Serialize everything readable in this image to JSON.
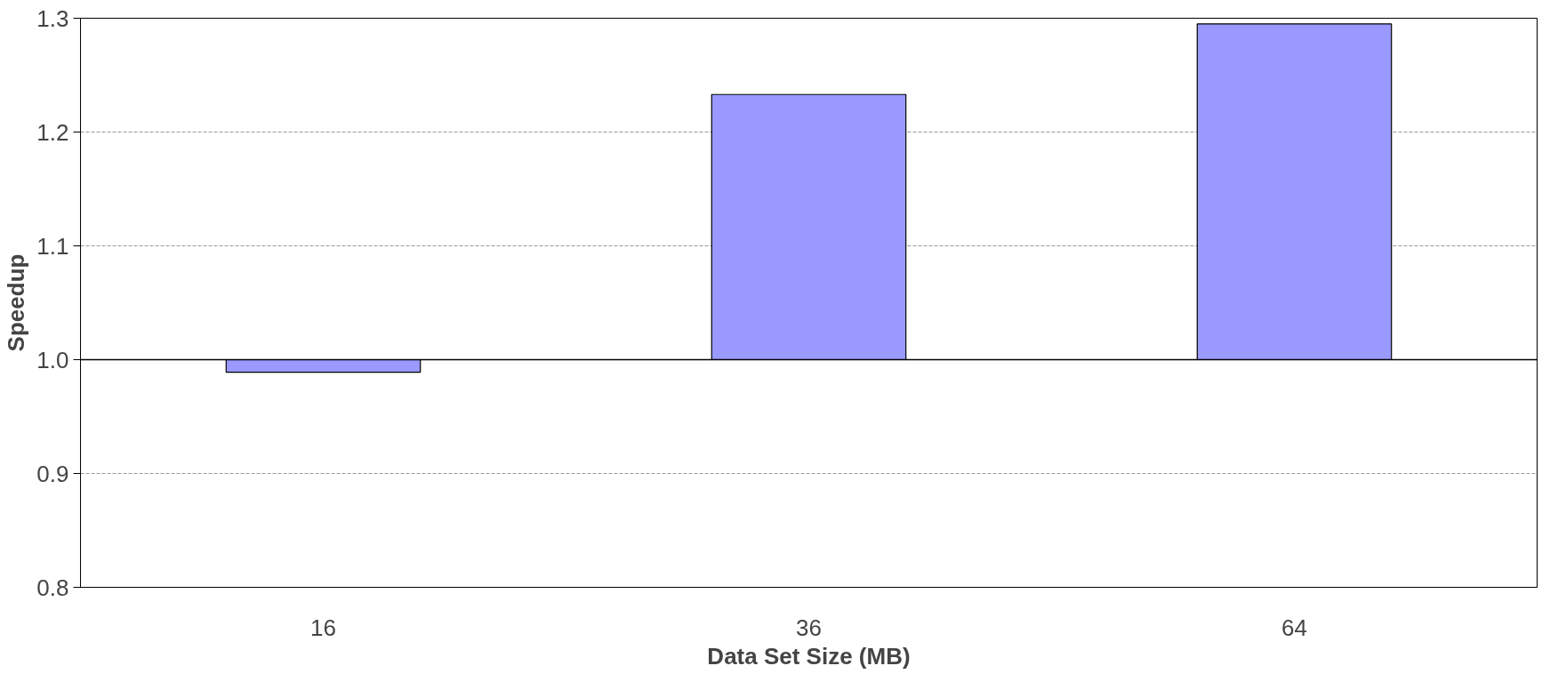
{
  "chart_data": {
    "type": "bar",
    "xlabel": "Data Set Size (MB)",
    "ylabel": "Speedup",
    "categories": [
      "16",
      "36",
      "64"
    ],
    "base": [
      1.0,
      1.0,
      1.0
    ],
    "values": [
      -0.011,
      0.233,
      0.295
    ],
    "color": "#9999ff",
    "ylim": [
      0.8,
      1.3
    ],
    "yticks": [
      {
        "value": 0.8,
        "label": "0.8"
      },
      {
        "value": 0.9,
        "label": "0.9"
      },
      {
        "value": 1.0,
        "label": "1.0"
      },
      {
        "value": 1.1,
        "label": "1.1"
      },
      {
        "value": 1.2,
        "label": "1.2"
      },
      {
        "value": 1.3,
        "label": "1.3"
      }
    ],
    "ref_lines": [
      {
        "axis": "y",
        "value": 1.0,
        "color": "#000000"
      }
    ],
    "grid": "y"
  }
}
